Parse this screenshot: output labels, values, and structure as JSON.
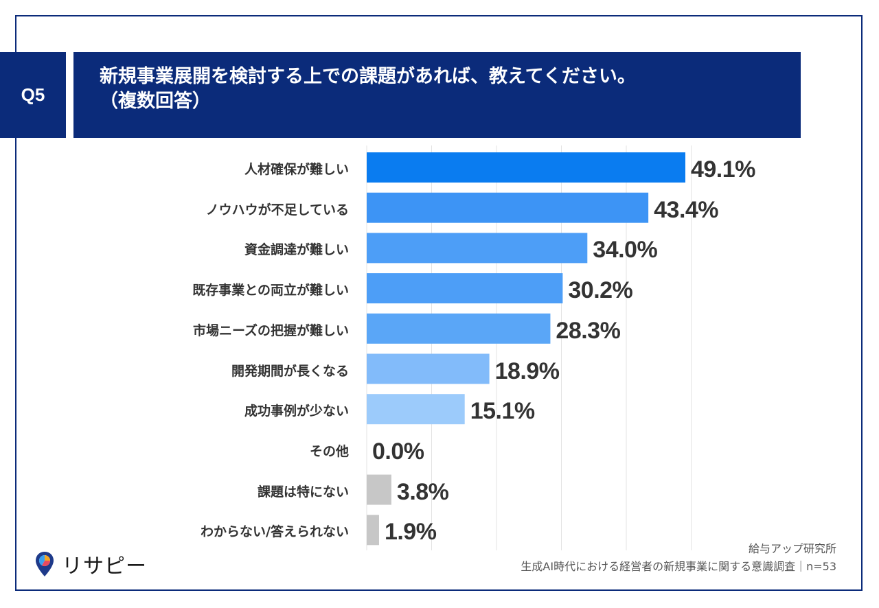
{
  "badge": "Q5",
  "title": {
    "line1": "新規事業展開を検討する上での課題があれば、教えてください。",
    "line2": "（複数回答）"
  },
  "chart_data": {
    "type": "bar",
    "orientation": "horizontal",
    "xlim": [
      0,
      50
    ],
    "unit": "%",
    "categories": [
      "人材確保が難しい",
      "ノウハウが不足している",
      "資金調達が難しい",
      "既存事業との両立が難しい",
      "市場ニーズの把握が難しい",
      "開発期間が長くなる",
      "成功事例が少ない",
      "その他",
      "課題は特にない",
      "わからない/答えられない"
    ],
    "values": [
      49.1,
      43.4,
      34.0,
      30.2,
      28.3,
      18.9,
      15.1,
      0.0,
      3.8,
      1.9
    ],
    "value_labels": [
      "49.1%",
      "43.4%",
      "34.0%",
      "30.2%",
      "28.3%",
      "18.9%",
      "15.1%",
      "0.0%",
      "3.8%",
      "1.9%"
    ],
    "colors": [
      "#0a7cf0",
      "#3d94f5",
      "#4d9ef7",
      "#4d9ef7",
      "#5aa6f7",
      "#82bbfa",
      "#9ccbfb",
      "#c7c7c7",
      "#c7c7c7",
      "#c7c7c7"
    ]
  },
  "source": {
    "org": "給与アップ研究所",
    "survey": "生成AI時代における経営者の新規事業に関する意識調査｜n=53"
  },
  "logo": {
    "text": "リサピー",
    "icon": "map-pin-icon"
  }
}
